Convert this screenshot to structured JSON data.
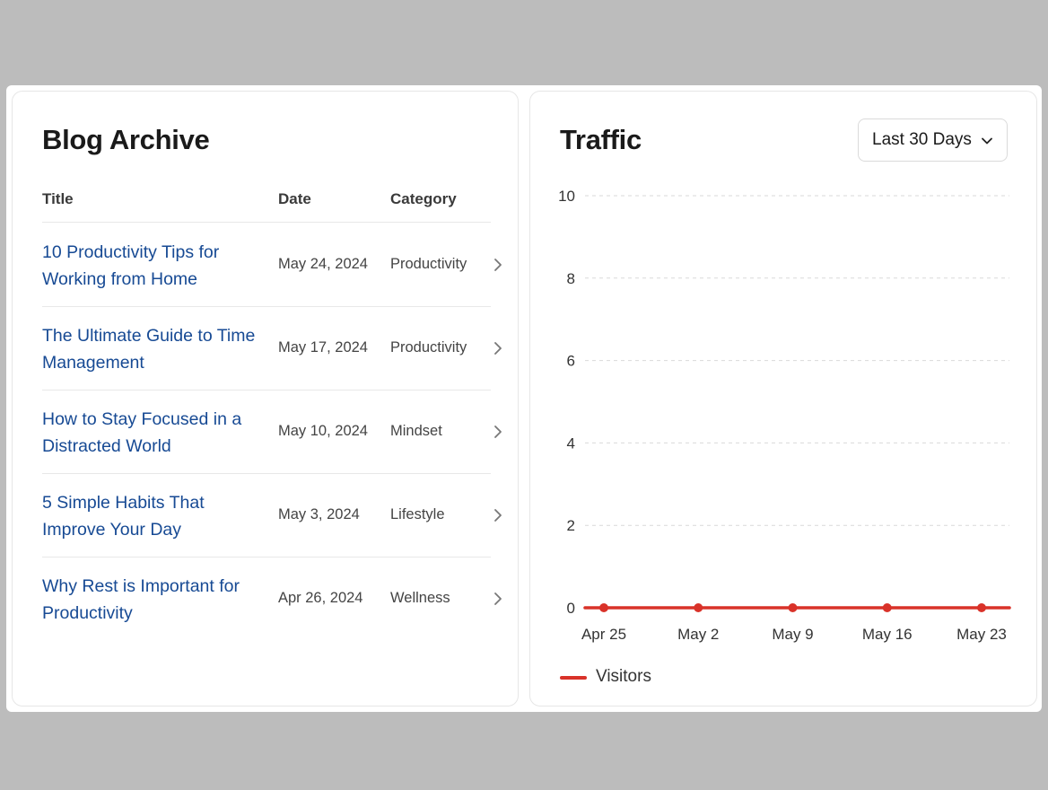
{
  "blog": {
    "title": "Blog Archive",
    "columns": {
      "title": "Title",
      "date": "Date",
      "category": "Category"
    },
    "posts": [
      {
        "title": "10 Productivity Tips for Working from Home",
        "date": "May 24, 2024",
        "category": "Productivity"
      },
      {
        "title": "The Ultimate Guide to Time Management",
        "date": "May 17, 2024",
        "category": "Productivity"
      },
      {
        "title": "How to Stay Focused in a Distracted World",
        "date": "May 10, 2024",
        "category": "Mindset"
      },
      {
        "title": "5 Simple Habits That Improve Your Day",
        "date": "May 3, 2024",
        "category": "Lifestyle"
      },
      {
        "title": "Why Rest is Important for Productivity",
        "date": "Apr 26, 2024",
        "category": "Wellness"
      }
    ]
  },
  "traffic": {
    "title": "Traffic",
    "range_select": {
      "selected": "Last 30 Days"
    }
  },
  "chart_data": {
    "type": "line",
    "title": "",
    "xlabel": "",
    "ylabel": "",
    "x": [
      "Apr 25",
      "May 2",
      "May 9",
      "May 16",
      "May 23"
    ],
    "yticks": [
      0,
      2,
      4,
      6,
      8,
      10
    ],
    "ylim": [
      0,
      10
    ],
    "grid": true,
    "legend_position": "bottom-left",
    "series": [
      {
        "name": "Visitors",
        "values": [
          0,
          0,
          0,
          0,
          0
        ],
        "color": "#d93229"
      }
    ]
  },
  "colors": {
    "accent": "#d93229",
    "link": "#174a94"
  }
}
